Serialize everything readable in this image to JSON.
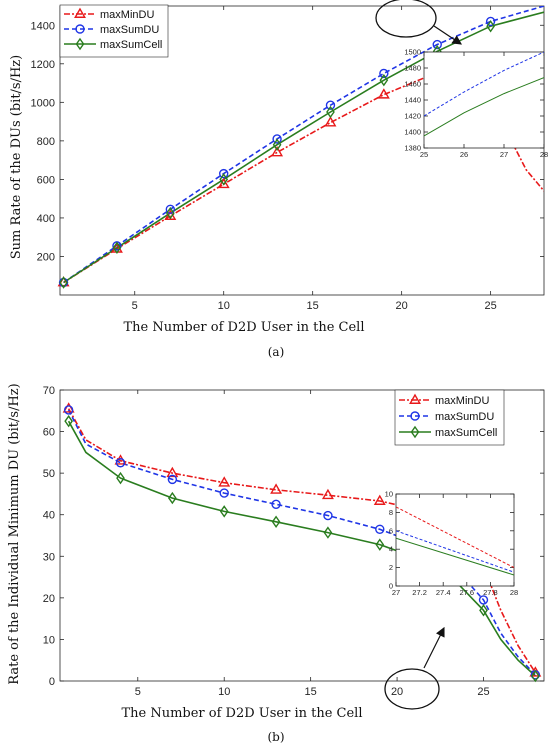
{
  "chart_data": [
    {
      "id": "a",
      "type": "line",
      "caption": "(a)",
      "xlabel": "The Number of D2D User in the Cell",
      "ylabel": "Sum Rate of the DUs (bit/s/Hz)",
      "xlim": [
        0.8,
        28
      ],
      "ylim": [
        0,
        1500
      ],
      "xticks": [
        5,
        10,
        15,
        20,
        25
      ],
      "yticks": [
        200,
        400,
        600,
        800,
        1000,
        1200,
        1400
      ],
      "legend": "top-left",
      "series": [
        {
          "name": "maxMinDU",
          "color": "#e8191a",
          "dash": "6,2,2,2",
          "marker": "triangle",
          "x": [
            1,
            4,
            7,
            10,
            13,
            16,
            19,
            22,
            23.5,
            25,
            26,
            27,
            28
          ],
          "y": [
            65,
            240,
            410,
            575,
            740,
            895,
            1040,
            1155,
            1150,
            1030,
            830,
            650,
            540
          ],
          "markers_at": [
            1,
            4,
            7,
            10,
            13,
            16,
            19,
            22,
            25
          ]
        },
        {
          "name": "maxSumDU",
          "color": "#1f35e6",
          "dash": "5,3",
          "marker": "circle",
          "x": [
            1,
            4,
            7,
            10,
            13,
            16,
            19,
            22,
            25,
            28
          ],
          "y": [
            65,
            255,
            445,
            630,
            810,
            985,
            1150,
            1300,
            1420,
            1500
          ],
          "markers_at": [
            1,
            4,
            7,
            10,
            13,
            16,
            19,
            22,
            25
          ]
        },
        {
          "name": "maxSumCell",
          "color": "#2a7d1f",
          "dash": "",
          "marker": "diamond",
          "x": [
            1,
            4,
            7,
            10,
            13,
            16,
            19,
            22,
            25,
            28
          ],
          "y": [
            65,
            245,
            425,
            600,
            780,
            950,
            1115,
            1265,
            1395,
            1468
          ],
          "markers_at": [
            1,
            4,
            7,
            10,
            13,
            16,
            19,
            22,
            25
          ]
        }
      ],
      "inset": {
        "xlim": [
          25,
          28
        ],
        "ylim": [
          1380,
          1500
        ],
        "xticks": [
          25,
          26,
          27,
          28
        ],
        "yticks": [
          1380,
          1400,
          1420,
          1440,
          1460,
          1480,
          1500
        ],
        "series": [
          {
            "name": "maxSumDU",
            "x": [
              25,
              26,
              27,
              28
            ],
            "y": [
              1420,
              1450,
              1477,
              1500
            ]
          },
          {
            "name": "maxSumCell",
            "x": [
              25,
              26,
              27,
              28
            ],
            "y": [
              1395,
              1424,
              1448,
              1468
            ]
          }
        ]
      }
    },
    {
      "id": "b",
      "type": "line",
      "caption": "(b)",
      "xlabel": "The Number of D2D User in the Cell",
      "ylabel": "Rate of the Individual Minimum DU (bit/s/Hz)",
      "xlim": [
        0.5,
        28.5
      ],
      "ylim": [
        0,
        70
      ],
      "xticks": [
        5,
        10,
        15,
        20,
        25
      ],
      "yticks": [
        0,
        10,
        20,
        30,
        40,
        50,
        60,
        70
      ],
      "legend": "top-right",
      "series": [
        {
          "name": "maxMinDU",
          "color": "#e8191a",
          "dash": "6,2,2,2",
          "marker": "triangle",
          "x": [
            1,
            2,
            4,
            7,
            10,
            13,
            16,
            19,
            22,
            23.5,
            25,
            26,
            27,
            28
          ],
          "y": [
            65.5,
            58,
            53,
            50,
            47.7,
            46,
            44.7,
            43.3,
            40.5,
            35,
            27.5,
            17,
            8.5,
            2
          ],
          "markers_at": [
            1,
            4,
            7,
            10,
            13,
            16,
            19,
            22,
            25,
            28
          ]
        },
        {
          "name": "maxSumDU",
          "color": "#1f35e6",
          "dash": "5,3",
          "marker": "circle",
          "x": [
            1,
            2,
            4,
            7,
            10,
            13,
            16,
            19,
            22,
            23.5,
            25,
            26,
            27,
            28
          ],
          "y": [
            65.2,
            57,
            52.5,
            48.5,
            45.2,
            42.5,
            39.8,
            36.5,
            31.8,
            26.5,
            19.5,
            11.5,
            5.8,
            1.5
          ],
          "markers_at": [
            1,
            4,
            7,
            10,
            13,
            16,
            19,
            22,
            25,
            28
          ]
        },
        {
          "name": "maxSumCell",
          "color": "#2a7d1f",
          "dash": "",
          "marker": "diamond",
          "x": [
            1,
            2,
            4,
            7,
            10,
            13,
            16,
            19,
            22,
            23.5,
            25,
            26,
            27,
            28
          ],
          "y": [
            62.5,
            55,
            48.8,
            44,
            40.8,
            38.3,
            35.7,
            32.8,
            28.3,
            23.5,
            17,
            10,
            5,
            1.2
          ],
          "markers_at": [
            1,
            4,
            7,
            10,
            13,
            16,
            19,
            22,
            25,
            28
          ]
        }
      ],
      "inset": {
        "xlim": [
          27,
          28
        ],
        "ylim": [
          0,
          10
        ],
        "xticks": [
          27,
          27.2,
          27.4,
          27.6,
          27.8,
          28
        ],
        "yticks": [
          0,
          2,
          4,
          6,
          8,
          10
        ],
        "series": [
          {
            "name": "maxMinDU",
            "x": [
              27,
              28
            ],
            "y": [
              8.6,
              2.0
            ]
          },
          {
            "name": "maxSumDU",
            "x": [
              27,
              28
            ],
            "y": [
              6.0,
              1.5
            ]
          },
          {
            "name": "maxSumCell",
            "x": [
              27,
              28
            ],
            "y": [
              5.2,
              1.2
            ]
          }
        ]
      }
    }
  ]
}
